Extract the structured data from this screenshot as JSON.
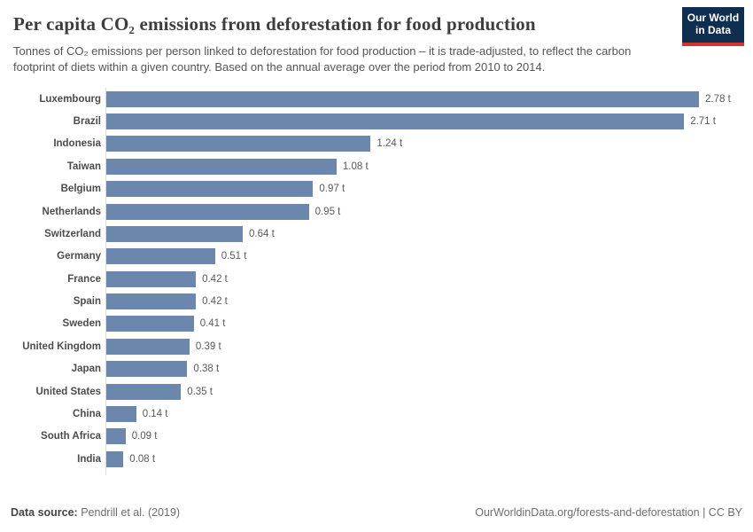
{
  "header": {
    "title": "Per capita CO₂ emissions from deforestation for food production",
    "subtitle": "Tonnes of CO₂ emissions per person linked to deforestation for food production – it is trade-adjusted, to reflect the carbon footprint of diets within a given country. Based on the annual average over the period from 2010 to 2014.",
    "logo": {
      "line1": "Our World",
      "line2": "in Data",
      "bg_color": "#0e2e52",
      "accent_color": "#d0342c"
    }
  },
  "chart_data": {
    "type": "bar",
    "orientation": "horizontal",
    "title": "Per capita CO₂ emissions from deforestation for food production",
    "unit": "t",
    "bar_color": "#6c87ae",
    "axis_color": "#dcdcdc",
    "xlim": [
      0,
      2.78
    ],
    "grid": false,
    "legend": "none",
    "categories": [
      "Luxembourg",
      "Brazil",
      "Indonesia",
      "Taiwan",
      "Belgium",
      "Netherlands",
      "Switzerland",
      "Germany",
      "France",
      "Spain",
      "Sweden",
      "United Kingdom",
      "Japan",
      "United States",
      "China",
      "South Africa",
      "India"
    ],
    "values": [
      2.78,
      2.71,
      1.24,
      1.08,
      0.97,
      0.95,
      0.64,
      0.51,
      0.42,
      0.42,
      0.41,
      0.39,
      0.38,
      0.35,
      0.14,
      0.09,
      0.08
    ],
    "value_labels": [
      "2.78 t",
      "2.71 t",
      "1.24 t",
      "1.08 t",
      "0.97 t",
      "0.95 t",
      "0.64 t",
      "0.51 t",
      "0.42 t",
      "0.42 t",
      "0.41 t",
      "0.39 t",
      "0.38 t",
      "0.35 t",
      "0.14 t",
      "0.09 t",
      "0.08 t"
    ]
  },
  "footer": {
    "datasource_label": "Data source:",
    "datasource_value": " Pendrill et al. (2019)",
    "right_text": "OurWorldinData.org/forests-and-deforestation | CC BY"
  }
}
